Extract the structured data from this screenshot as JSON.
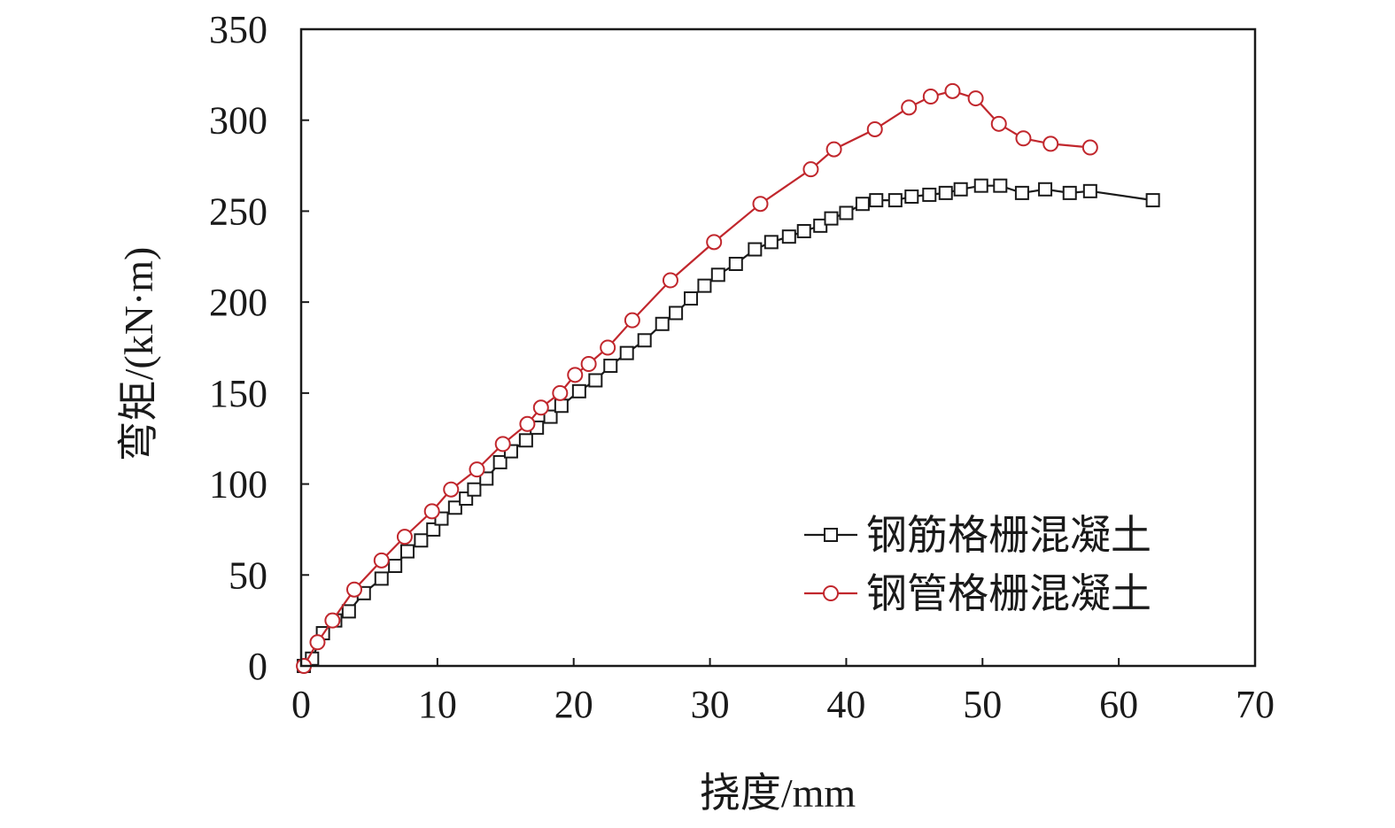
{
  "chart_data": {
    "type": "line",
    "xlabel": "挠度/mm",
    "ylabel": "弯矩/(kN·m)",
    "xlim": [
      0,
      70
    ],
    "ylim": [
      0,
      350
    ],
    "xticks": [
      0,
      10,
      20,
      30,
      40,
      50,
      60,
      70
    ],
    "yticks": [
      0,
      50,
      100,
      150,
      200,
      250,
      300,
      350
    ],
    "grid": false,
    "legend_position": "bottom-right",
    "series": [
      {
        "name": "钢筋格栅混凝土",
        "color": "#1a1a1a",
        "marker": "square",
        "x": [
          0.2,
          0.8,
          1.6,
          2.5,
          3.5,
          4.6,
          5.9,
          6.9,
          7.8,
          8.8,
          9.7,
          10.3,
          11.3,
          12.1,
          12.7,
          13.6,
          14.6,
          15.4,
          16.5,
          17.3,
          18.3,
          19.1,
          20.4,
          21.6,
          22.7,
          23.9,
          25.2,
          26.5,
          27.5,
          28.6,
          29.6,
          30.6,
          31.9,
          33.3,
          34.5,
          35.8,
          36.9,
          38.1,
          38.9,
          40.0,
          41.2,
          42.2,
          43.6,
          44.8,
          46.1,
          47.3,
          48.4,
          49.9,
          51.3,
          52.9,
          54.6,
          56.4,
          57.9,
          62.5
        ],
        "y": [
          0,
          4,
          18,
          25,
          30,
          40,
          48,
          55,
          63,
          69,
          75,
          81,
          87,
          92,
          97,
          103,
          112,
          118,
          124,
          131,
          137,
          143,
          151,
          157,
          165,
          172,
          179,
          188,
          194,
          202,
          209,
          215,
          221,
          229,
          233,
          236,
          239,
          242,
          246,
          249,
          254,
          256,
          256,
          258,
          259,
          260,
          262,
          264,
          264,
          260,
          262,
          260,
          261,
          256
        ]
      },
      {
        "name": "钢管格栅混凝土",
        "color": "#c1272d",
        "marker": "circle",
        "x": [
          0.2,
          1.2,
          2.3,
          3.9,
          5.9,
          7.6,
          9.6,
          11.0,
          12.9,
          14.8,
          16.6,
          17.6,
          19.0,
          20.1,
          21.1,
          22.5,
          24.3,
          27.1,
          30.3,
          33.7,
          37.4,
          39.1,
          42.1,
          44.6,
          46.2,
          47.8,
          49.5,
          51.2,
          53.0,
          55.0,
          57.9
        ],
        "y": [
          0,
          13,
          25,
          42,
          58,
          71,
          85,
          97,
          108,
          122,
          133,
          142,
          150,
          160,
          166,
          175,
          190,
          212,
          233,
          254,
          273,
          284,
          295,
          307,
          313,
          316,
          312,
          298,
          290,
          287,
          285
        ]
      }
    ]
  }
}
